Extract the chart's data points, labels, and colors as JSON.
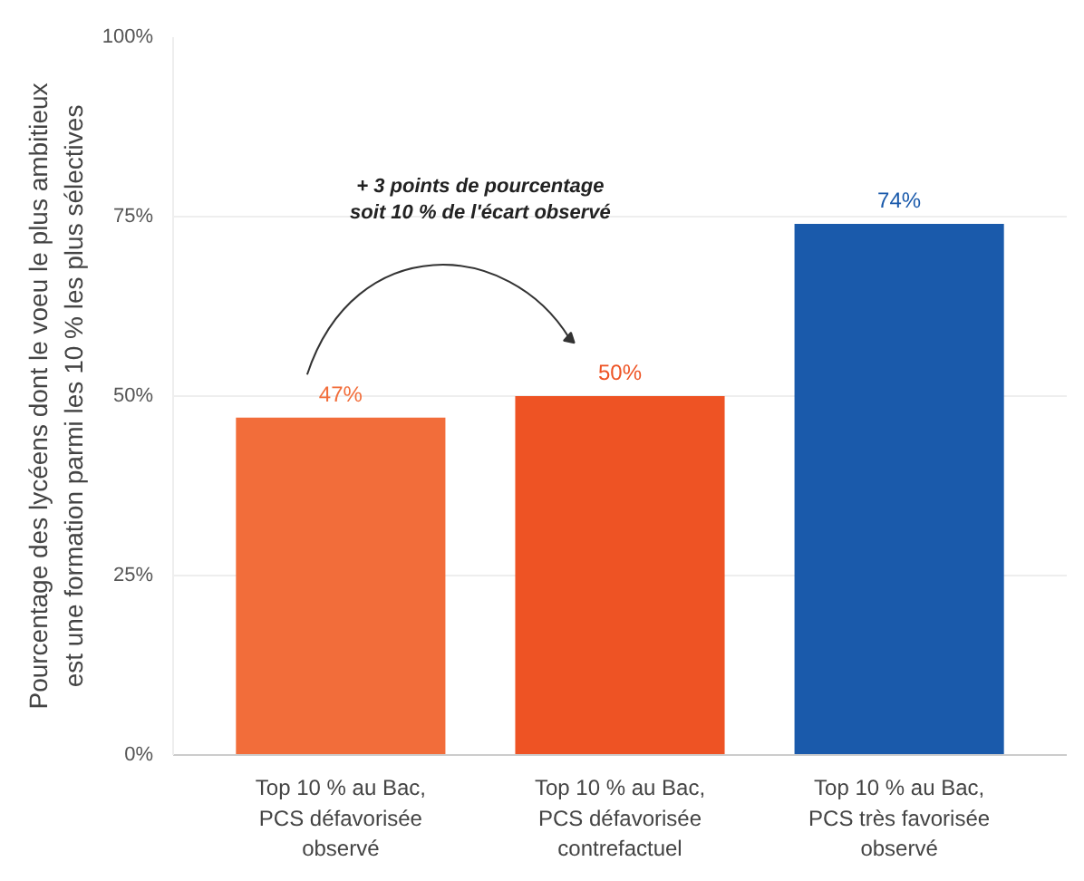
{
  "chart_data": {
    "type": "bar",
    "ylabel": "Pourcentage des lycéens dont le voeu le plus ambitieux\nest une formation parmi les 10 % les plus sélectives",
    "categories": [
      "Top 10 % au Bac,\nPCS défavorisée\nobservé",
      "Top 10 % au Bac,\nPCS défavorisée\ncontrefactuel",
      "Top 10 % au Bac,\nPCS très favorisée\nobservé"
    ],
    "values": [
      47,
      50,
      74
    ],
    "colors": [
      "#f26d3a",
      "#ee5324",
      "#1a5aab"
    ],
    "value_labels": [
      "47%",
      "50%",
      "74%"
    ],
    "ylim": [
      0,
      100
    ],
    "yticks": [
      {
        "value": 0,
        "label": "0%"
      },
      {
        "value": 25,
        "label": "25%"
      },
      {
        "value": 50,
        "label": "50%"
      },
      {
        "value": 75,
        "label": "75%"
      },
      {
        "value": 100,
        "label": "100%"
      }
    ],
    "grid": "y",
    "annotations": [
      "+ 3 points de pourcentage\nsoit 10 % de l'écart observé"
    ]
  }
}
